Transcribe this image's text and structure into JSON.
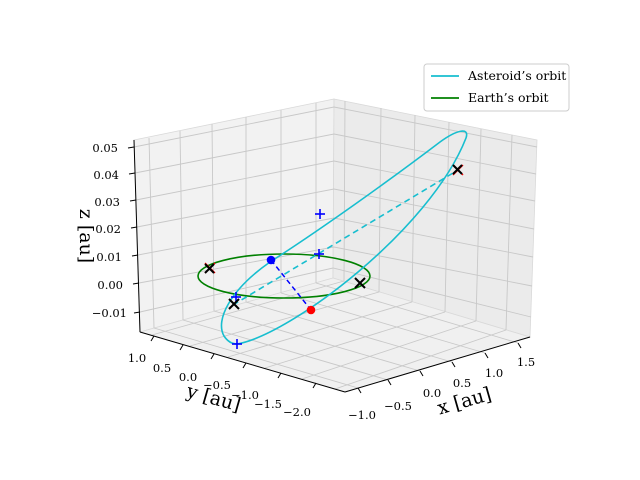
{
  "chart_data": {
    "type": "3d-line",
    "xlabel": "x [au]",
    "ylabel": "y [au]",
    "zlabel": "z [au]",
    "xticks": [
      "−1.0",
      "−0.5",
      "0.0",
      "0.5",
      "1.0",
      "1.5"
    ],
    "yticks": [
      "1.0",
      "0.5",
      "0.0",
      "−0.5",
      "−1.0",
      "−1.5",
      "−2.0"
    ],
    "zticks": [
      "0.05",
      "0.04",
      "0.03",
      "0.02",
      "0.01",
      "0.00",
      "−0.01"
    ],
    "grid": true,
    "legend_position": "top-right",
    "series": [
      {
        "name": "Asteroid's orbit",
        "color": "#17becf",
        "style": "solid"
      },
      {
        "name": "Earth's orbit",
        "color": "#008000",
        "style": "solid"
      }
    ],
    "markers": {
      "plus_color": "#0000ff",
      "cross_color": "#000000",
      "red_point_color": "#ff0000",
      "blue_point_color": "#0000ff"
    }
  },
  "legend": {
    "items": [
      {
        "label": "Asteroid’s orbit",
        "color": "#17becf"
      },
      {
        "label": "Earth’s orbit",
        "color": "#008000"
      }
    ]
  }
}
